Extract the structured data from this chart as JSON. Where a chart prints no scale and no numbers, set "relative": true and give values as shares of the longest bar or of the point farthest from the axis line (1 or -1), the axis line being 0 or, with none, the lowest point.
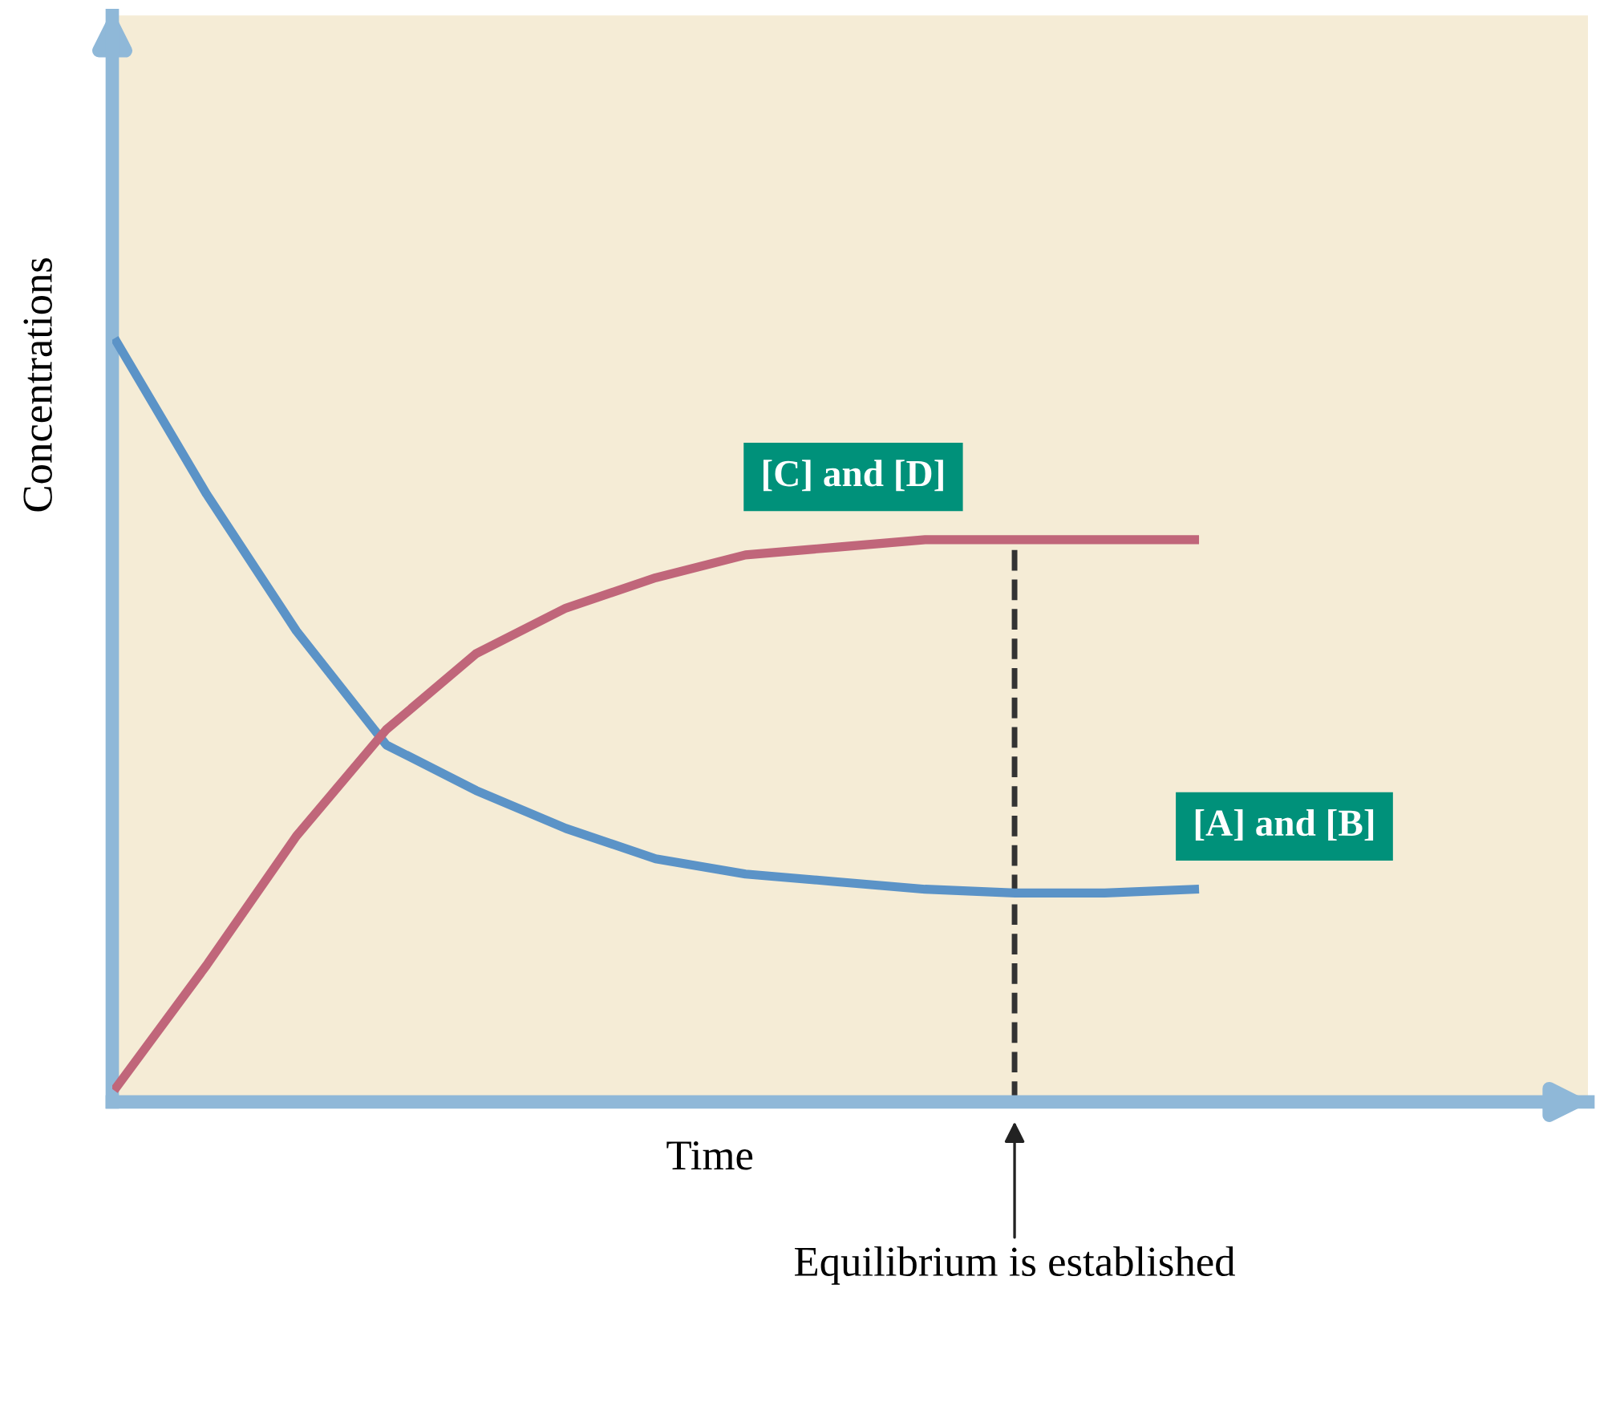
{
  "chart_data": {
    "type": "line",
    "relative": true,
    "xlabel": "Time",
    "ylabel": "Concentrations",
    "categories": [
      null,
      null,
      null,
      null,
      null,
      null,
      null,
      null,
      null,
      null,
      null,
      null,
      null
    ],
    "series": [
      {
        "name": "[A] and [B]",
        "color": "#5b93c7",
        "values": [
          1,
          0.8,
          0.62,
          0.47,
          0.41,
          0.36,
          0.32,
          0.3,
          0.29,
          0.28,
          0.275,
          0.275,
          0.28
        ]
      },
      {
        "name": "[C] and [D]",
        "color": "#c0667a",
        "values": [
          0.02,
          0.18,
          0.35,
          0.49,
          0.59,
          0.65,
          0.69,
          0.72,
          0.73,
          0.74,
          0.74,
          0.74,
          0.74
        ]
      }
    ],
    "annotations": [
      "Equilibrium is established"
    ],
    "grid": false,
    "marker": "none",
    "line_style": "solid"
  }
}
